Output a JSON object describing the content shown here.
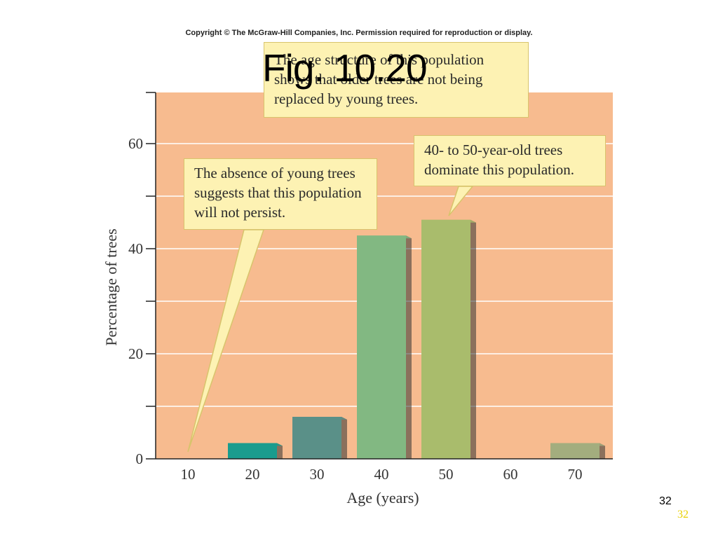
{
  "copyright": "Copyright © The McGraw-Hill Companies, Inc. Permission required for reproduction or display.",
  "figure_title": "Fig. 10.20",
  "callouts": {
    "top": "The age structure of this population shows that older trees are not being replaced by young trees.",
    "left": "The absence of young trees suggests that this population will not persist.",
    "right": "40- to 50-year-old trees dominate this population."
  },
  "slide_number": "32",
  "slide_number_secondary": "32",
  "chart_data": {
    "type": "bar",
    "categories": [
      "10",
      "20",
      "30",
      "40",
      "50",
      "60",
      "70"
    ],
    "values": [
      0,
      3,
      8,
      42.5,
      45.5,
      0,
      3
    ],
    "xlabel": "Age (years)",
    "ylabel": "Percentage of trees",
    "ylim": [
      0,
      70
    ],
    "y_ticks_labeled": [
      0,
      20,
      40,
      60
    ],
    "y_ticks_minor": [
      10,
      30,
      50
    ],
    "grid": true,
    "background_color": "#f7bb8f",
    "bar_colors": [
      "#1a9c8e",
      "#1a9c8e",
      "#5a9088",
      "#82b882",
      "#a9bc6c",
      "#a9bc6c",
      "#a3ad7e"
    ],
    "callout_fill": "#fdf2b3"
  }
}
